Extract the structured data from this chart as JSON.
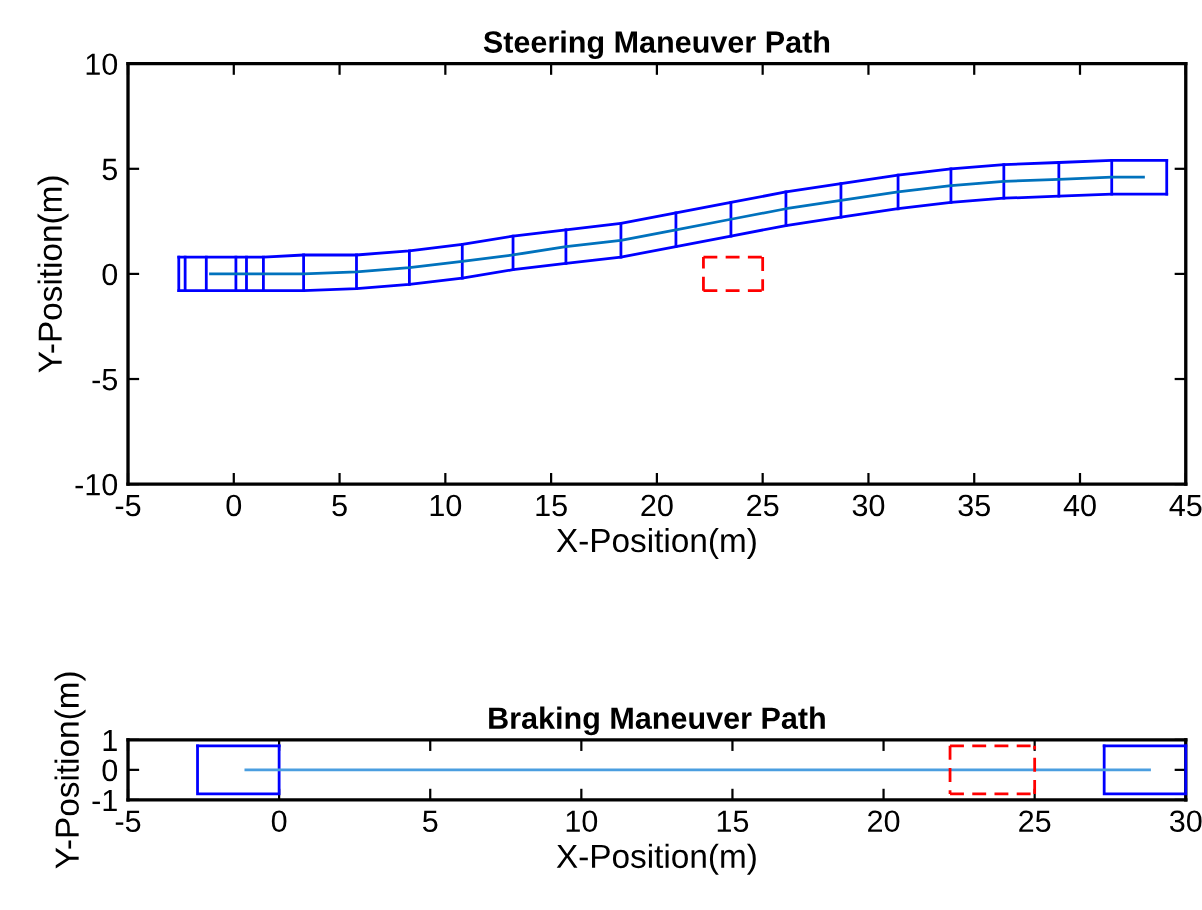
{
  "chart_data": [
    {
      "type": "line",
      "title": "Steering Maneuver Path",
      "xlabel": "X-Position(m)",
      "ylabel": "Y-Position(m)",
      "xlim": [
        -5,
        45
      ],
      "ylim": [
        -10,
        10
      ],
      "xticks": [
        -5,
        0,
        5,
        10,
        15,
        20,
        25,
        30,
        35,
        40,
        45
      ],
      "yticks": [
        -10,
        -5,
        0,
        5,
        10
      ],
      "series": [
        {
          "color": "#0000ff",
          "x": [
            -2.6,
            -2.3,
            -1.3,
            0.1,
            0.6,
            1.4,
            3.3,
            5.8,
            8.3,
            10.8,
            13.2,
            15.7,
            18.3,
            20.9,
            23.5,
            26.1,
            28.7,
            31.4,
            33.9,
            36.4,
            39.0,
            41.5,
            44.1
          ],
          "values": [
            0.8,
            0.8,
            0.8,
            0.8,
            0.8,
            0.8,
            0.9,
            0.9,
            1.1,
            1.4,
            1.8,
            2.1,
            2.4,
            2.9,
            3.4,
            3.9,
            4.3,
            4.7,
            5.0,
            5.2,
            5.3,
            5.4,
            5.4
          ]
        },
        {
          "color": "#0000ff",
          "x": [
            -2.6,
            -2.3,
            -1.3,
            0.1,
            0.6,
            1.4,
            3.3,
            5.8,
            8.3,
            10.8,
            13.2,
            15.7,
            18.3,
            20.9,
            23.5,
            26.1,
            28.7,
            31.4,
            33.9,
            36.4,
            39.0,
            41.5,
            44.1
          ],
          "values": [
            -0.8,
            -0.8,
            -0.8,
            -0.8,
            -0.8,
            -0.8,
            -0.8,
            -0.7,
            -0.5,
            -0.2,
            0.2,
            0.5,
            0.8,
            1.3,
            1.8,
            2.3,
            2.7,
            3.1,
            3.4,
            3.6,
            3.7,
            3.8,
            3.8
          ]
        },
        {
          "color": "#0000ff",
          "x": [
            -2.6,
            -2.6,
            null,
            -2.3,
            -2.3,
            null,
            -1.3,
            -1.3,
            null,
            0.1,
            0.1,
            null,
            0.6,
            0.6,
            null,
            1.4,
            1.4,
            null,
            3.3,
            3.3,
            null,
            5.8,
            5.8,
            null,
            8.3,
            8.3,
            null,
            10.8,
            10.8,
            null,
            13.2,
            13.2,
            null,
            15.7,
            15.7,
            null,
            18.3,
            18.3,
            null,
            20.9,
            20.9,
            null,
            23.5,
            23.5,
            null,
            26.1,
            26.1,
            null,
            28.7,
            28.7,
            null,
            31.4,
            31.4,
            null,
            33.9,
            33.9,
            null,
            36.4,
            36.4,
            null,
            39.0,
            39.0,
            null,
            41.5,
            41.5,
            null,
            44.1,
            44.1
          ],
          "values": [
            -0.8,
            0.8,
            null,
            -0.8,
            0.8,
            null,
            -0.8,
            0.8,
            null,
            -0.8,
            0.8,
            null,
            -0.8,
            0.8,
            null,
            -0.8,
            0.8,
            null,
            -0.8,
            0.9,
            null,
            -0.7,
            0.9,
            null,
            -0.5,
            1.1,
            null,
            -0.2,
            1.4,
            null,
            0.2,
            1.8,
            null,
            0.5,
            2.1,
            null,
            0.8,
            2.4,
            null,
            1.3,
            2.9,
            null,
            1.8,
            3.4,
            null,
            2.3,
            3.9,
            null,
            2.7,
            4.3,
            null,
            3.1,
            4.7,
            null,
            3.4,
            5.0,
            null,
            3.6,
            5.2,
            null,
            3.7,
            5.3,
            null,
            3.8,
            5.4,
            null,
            3.8,
            5.4
          ]
        },
        {
          "color": "#0072bd",
          "x": [
            -1.1,
            3.3,
            5.8,
            8.3,
            10.8,
            13.2,
            15.7,
            18.3,
            20.9,
            23.5,
            26.1,
            28.7,
            31.4,
            33.9,
            36.4,
            39.0,
            41.5,
            43.0
          ],
          "values": [
            0,
            0,
            0.1,
            0.3,
            0.6,
            0.9,
            1.3,
            1.6,
            2.1,
            2.6,
            3.1,
            3.5,
            3.9,
            4.2,
            4.4,
            4.5,
            4.6,
            4.6
          ]
        },
        {
          "color": "#ff0000",
          "line_style": "dashed",
          "x": [
            22.2,
            22.2,
            null,
            22.2,
            25.0,
            null,
            25.0,
            25.0
          ],
          "values": [
            -0.8,
            0.8,
            null,
            0.8,
            0.8,
            null,
            0.8,
            -0.8
          ]
        },
        {
          "color": "#ff0000",
          "line_style": "dashed",
          "x": [
            22.2,
            25.0
          ],
          "values": [
            -0.8,
            -0.8
          ]
        }
      ]
    },
    {
      "type": "line",
      "title": "Braking Maneuver Path",
      "xlabel": "X-Position(m)",
      "ylabel": "Y-Position(m)",
      "xlim": [
        -5,
        30
      ],
      "ylim": [
        -1,
        1
      ],
      "xticks": [
        -5,
        0,
        5,
        10,
        15,
        20,
        25,
        30
      ],
      "yticks": [
        -1,
        0,
        1
      ],
      "series": [
        {
          "color": "#0000ff",
          "x": [
            -2.7,
            -2.7,
            null,
            -2.7,
            0,
            null,
            0,
            0
          ],
          "values": [
            0.8,
            -0.8,
            null,
            -0.8,
            -0.8,
            null,
            -0.8,
            0.8
          ]
        },
        {
          "color": "#0000ff",
          "x": [
            -2.7,
            0
          ],
          "values": [
            0.8,
            0.8
          ]
        },
        {
          "color": "#0000ff",
          "x": [
            27.3,
            27.3,
            null,
            27.3,
            30,
            null,
            30,
            30
          ],
          "values": [
            0.8,
            -0.8,
            null,
            -0.8,
            -0.8,
            null,
            -0.8,
            0.8
          ]
        },
        {
          "color": "#0000ff",
          "x": [
            27.3,
            30
          ],
          "values": [
            0.8,
            0.8
          ]
        },
        {
          "color": "#4a9ee0",
          "x": [
            -1.1,
            28.8
          ],
          "values": [
            0,
            0
          ]
        },
        {
          "color": "#ff0000",
          "line_style": "dashed",
          "x": [
            22.2,
            22.2,
            null,
            22.2,
            25.0,
            null,
            25.0,
            25.0
          ],
          "values": [
            0.8,
            -0.8,
            null,
            -0.8,
            -0.8,
            null,
            -0.8,
            0.8
          ]
        },
        {
          "color": "#ff0000",
          "line_style": "dashed",
          "x": [
            22.2,
            25.0
          ],
          "values": [
            0.8,
            0.8
          ]
        }
      ]
    }
  ]
}
